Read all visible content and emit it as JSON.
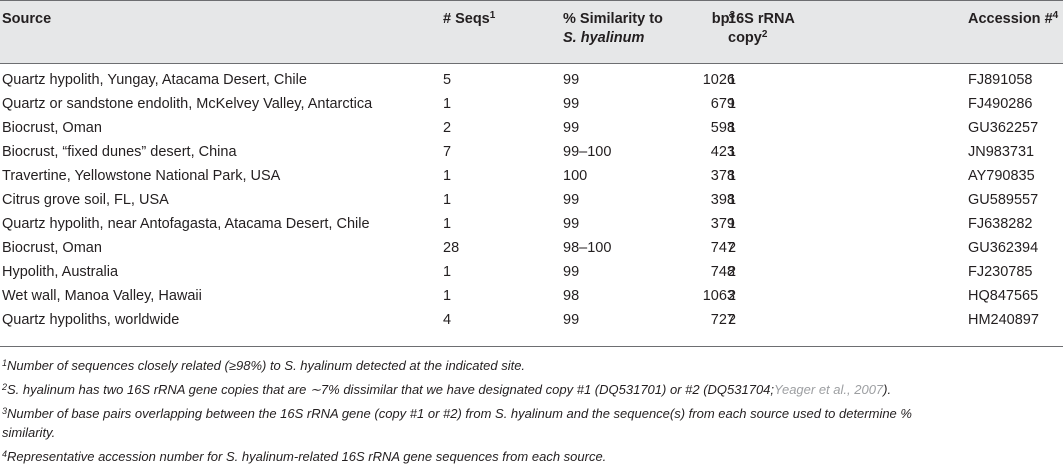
{
  "headers": {
    "source": "Source",
    "seqs": "# Seqs",
    "seqs_sup": "1",
    "similarity_line1": "% Similarity to",
    "similarity_line2": "S. hyalinum",
    "copy_line1": "16S rRNA",
    "copy_line2": "copy",
    "copy_sup": "2",
    "bp": "bp",
    "bp_sup": "3",
    "accession": "Accession #",
    "accession_sup": "4"
  },
  "rows": [
    {
      "source": "Quartz hypolith, Yungay, Atacama Desert, Chile",
      "seqs": "5",
      "similarity": "99",
      "copy": "1",
      "bp": "1026",
      "accession": "FJ891058"
    },
    {
      "source": "Quartz or sandstone endolith, McKelvey Valley, Antarctica",
      "seqs": "1",
      "similarity": "99",
      "copy": "1",
      "bp": "679",
      "accession": "FJ490286"
    },
    {
      "source": "Biocrust, Oman",
      "seqs": "2",
      "similarity": "99",
      "copy": "1",
      "bp": "598",
      "accession": "GU362257"
    },
    {
      "source": "Biocrust, “fixed dunes” desert, China",
      "seqs": "7",
      "similarity": "99–100",
      "copy": "1",
      "bp": "423",
      "accession": "JN983731"
    },
    {
      "source": "Travertine, Yellowstone National Park, USA",
      "seqs": "1",
      "similarity": "100",
      "copy": "1",
      "bp": "378",
      "accession": "AY790835"
    },
    {
      "source": "Citrus grove soil, FL, USA",
      "seqs": "1",
      "similarity": "99",
      "copy": "1",
      "bp": "398",
      "accession": "GU589557"
    },
    {
      "source": "Quartz hypolith, near Antofagasta, Atacama Desert, Chile",
      "seqs": "1",
      "similarity": "99",
      "copy": "1",
      "bp": "379",
      "accession": "FJ638282"
    },
    {
      "source": "Biocrust, Oman",
      "seqs": "28",
      "similarity": "98–100",
      "copy": "2",
      "bp": "747",
      "accession": "GU362394"
    },
    {
      "source": "Hypolith, Australia",
      "seqs": "1",
      "similarity": "99",
      "copy": "2",
      "bp": "748",
      "accession": "FJ230785"
    },
    {
      "source": "Wet wall, Manoa Valley, Hawaii",
      "seqs": "1",
      "similarity": "98",
      "copy": "2",
      "bp": "1063",
      "accession": "HQ847565"
    },
    {
      "source": "Quartz hypoliths, worldwide",
      "seqs": "4",
      "similarity": "99",
      "copy": "2",
      "bp": "727",
      "accession": "HM240897"
    }
  ],
  "footnotes": {
    "n1_mark": "1",
    "n1_text": "Number of sequences closely related (≥98%) to S. hyalinum detected at the indicated site.",
    "n2_mark": "2",
    "n2_text": "S. hyalinum has two 16S rRNA gene copies that are ∼7% dissimilar that we have designated copy #1 (DQ531701) or #2 (DQ531704;",
    "n2_ref": "Yeager et al., 2007",
    "n2_end": ").",
    "n3_mark": "3",
    "n3_line1": "Number of base pairs overlapping between the 16S rRNA gene (copy #1 or #2) from S. hyalinum and the sequence(s) from each source used to determine %",
    "n3_line2": "similarity.",
    "n4_mark": "4",
    "n4_text": "Representative accession number for S. hyalinum-related 16S rRNA gene sequences from each source."
  }
}
